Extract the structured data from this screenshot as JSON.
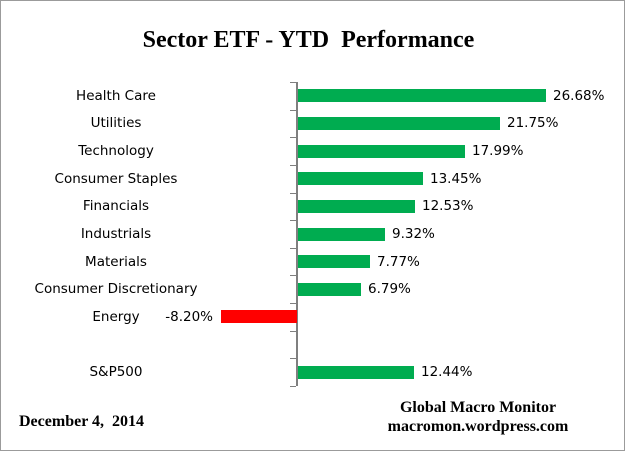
{
  "chart_data": {
    "type": "bar",
    "orientation": "horizontal",
    "title": "Sector ETF - YTD  Performance",
    "categories": [
      "Health Care",
      "Utilities",
      "Technology",
      "Consumer Staples",
      "Financials",
      "Industrials",
      "Materials",
      "Consumer Discretionary",
      "Energy",
      "",
      "S&P500"
    ],
    "values": [
      26.68,
      21.75,
      17.99,
      13.45,
      12.53,
      9.32,
      7.77,
      6.79,
      -8.2,
      null,
      12.44
    ],
    "data_labels": [
      "26.68%",
      "21.75%",
      "17.99%",
      "13.45%",
      "12.53%",
      "9.32%",
      "7.77%",
      "6.79%",
      "-8.20%",
      "",
      "12.44%"
    ],
    "xlabel": "",
    "ylabel": "",
    "grid": false,
    "legend": false,
    "colors": {
      "positive_bar": "#00AC50",
      "negative_bar": "#FF0000",
      "axis": "#7f7f7f",
      "text": "#000000"
    }
  },
  "footer": {
    "date": "December 4,  2014",
    "credit_line1": "Global Macro Monitor",
    "credit_line2": "macromon.wordpress.com"
  }
}
